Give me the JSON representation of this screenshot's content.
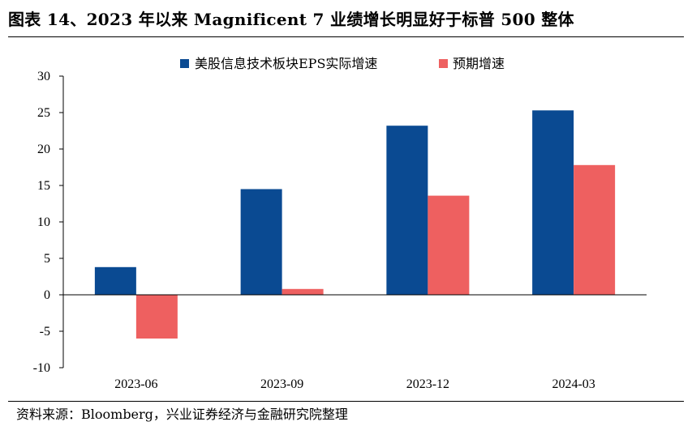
{
  "header": {
    "title": "图表 14、2023 年以来 Magnificent 7 业绩增长明显好于标普 500 整体"
  },
  "footer": {
    "source": "资料来源：Bloomberg，兴业证券经济与金融研究院整理"
  },
  "colors": {
    "series_1": "#0a4a92",
    "series_2": "#ee6060"
  },
  "chart_data": {
    "type": "bar",
    "categories": [
      "2023-06",
      "2023-09",
      "2023-12",
      "2024-03"
    ],
    "series": [
      {
        "name": "美股信息技术板块EPS实际增速",
        "values": [
          3.8,
          14.5,
          23.2,
          25.3
        ]
      },
      {
        "name": "预期增速",
        "values": [
          -6.0,
          0.8,
          13.6,
          17.8
        ]
      }
    ],
    "ylim": [
      -10,
      30
    ],
    "yticks": [
      30,
      25,
      20,
      15,
      10,
      5,
      0,
      -5,
      -10
    ],
    "legend_position": "top-center",
    "xlabel": "",
    "ylabel": "",
    "grid": false
  }
}
